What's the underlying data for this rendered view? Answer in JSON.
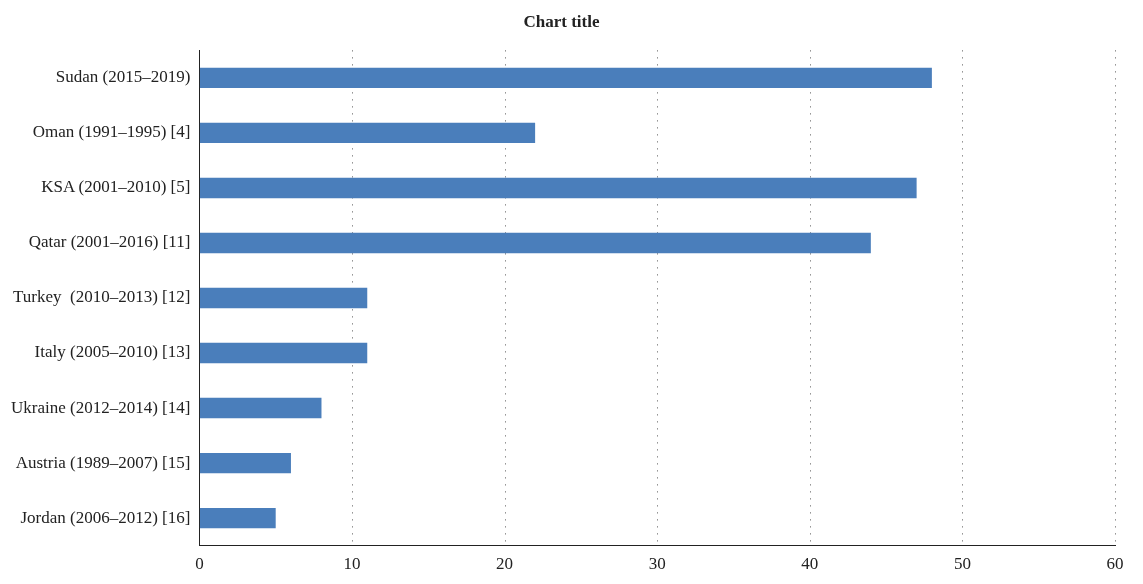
{
  "chart_data": {
    "type": "bar",
    "orientation": "horizontal",
    "title": "Chart title",
    "categories": [
      "Sudan (2015–2019)",
      "Oman (1991–1995) [4]",
      "KSA (2001–2010) [5]",
      "Qatar (2001–2016) [11]",
      "Turkey  (2010–2013) [12]",
      "Italy (2005–2010) [13]",
      "Ukraine (2012–2014) [14]",
      "Austria (1989–2007) [15]",
      "Jordan (2006–2012) [16]"
    ],
    "values": [
      48,
      22,
      47,
      44,
      11,
      11,
      8,
      6,
      5
    ],
    "color": "#4a7ebb",
    "xlim": [
      0,
      60
    ],
    "xticks": [
      0,
      10,
      20,
      30,
      40,
      50,
      60
    ],
    "grid": "x",
    "legend": false
  }
}
